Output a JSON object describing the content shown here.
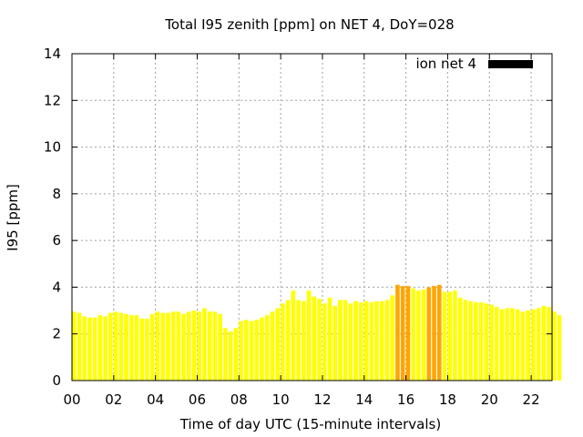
{
  "chart_data": {
    "type": "bar",
    "title": "Total I95 zenith [ppm] on NET 4, DoY=028",
    "xlabel": "Time of day UTC (15-minute intervals)",
    "ylabel": "I95 [ppm]",
    "xlim": [
      0,
      23
    ],
    "ylim": [
      0,
      14
    ],
    "x_ticks": [
      "00",
      "02",
      "04",
      "06",
      "08",
      "10",
      "12",
      "14",
      "16",
      "18",
      "20",
      "22"
    ],
    "y_ticks": [
      "0",
      "2",
      "4",
      "6",
      "8",
      "10",
      "12",
      "14"
    ],
    "grid": true,
    "legend_position": "top-right",
    "series": [
      {
        "name": "ion net 4",
        "legend_color": "#000000",
        "default_color": "#ffff00",
        "highlight_color": "#ffa500",
        "highlight_threshold": 4.0,
        "values": [
          2.95,
          2.9,
          2.75,
          2.7,
          2.7,
          2.8,
          2.75,
          2.9,
          2.95,
          2.9,
          2.85,
          2.8,
          2.8,
          2.65,
          2.65,
          2.85,
          2.95,
          2.9,
          2.9,
          2.95,
          2.95,
          2.85,
          2.95,
          3.0,
          2.95,
          3.1,
          2.95,
          2.95,
          2.85,
          2.25,
          2.1,
          2.25,
          2.55,
          2.6,
          2.55,
          2.6,
          2.7,
          2.8,
          2.95,
          3.1,
          3.3,
          3.45,
          3.85,
          3.45,
          3.4,
          3.85,
          3.6,
          3.5,
          3.3,
          3.55,
          3.2,
          3.45,
          3.45,
          3.3,
          3.4,
          3.35,
          3.4,
          3.35,
          3.4,
          3.4,
          3.45,
          3.65,
          4.1,
          4.05,
          4.05,
          3.95,
          3.85,
          3.9,
          4.0,
          4.05,
          4.1,
          3.8,
          3.8,
          3.85,
          3.55,
          3.45,
          3.4,
          3.35,
          3.35,
          3.3,
          3.25,
          3.15,
          3.05,
          3.1,
          3.1,
          3.05,
          2.95,
          3.0,
          3.05,
          3.1,
          3.2,
          3.15,
          2.95,
          2.8
        ]
      }
    ]
  }
}
